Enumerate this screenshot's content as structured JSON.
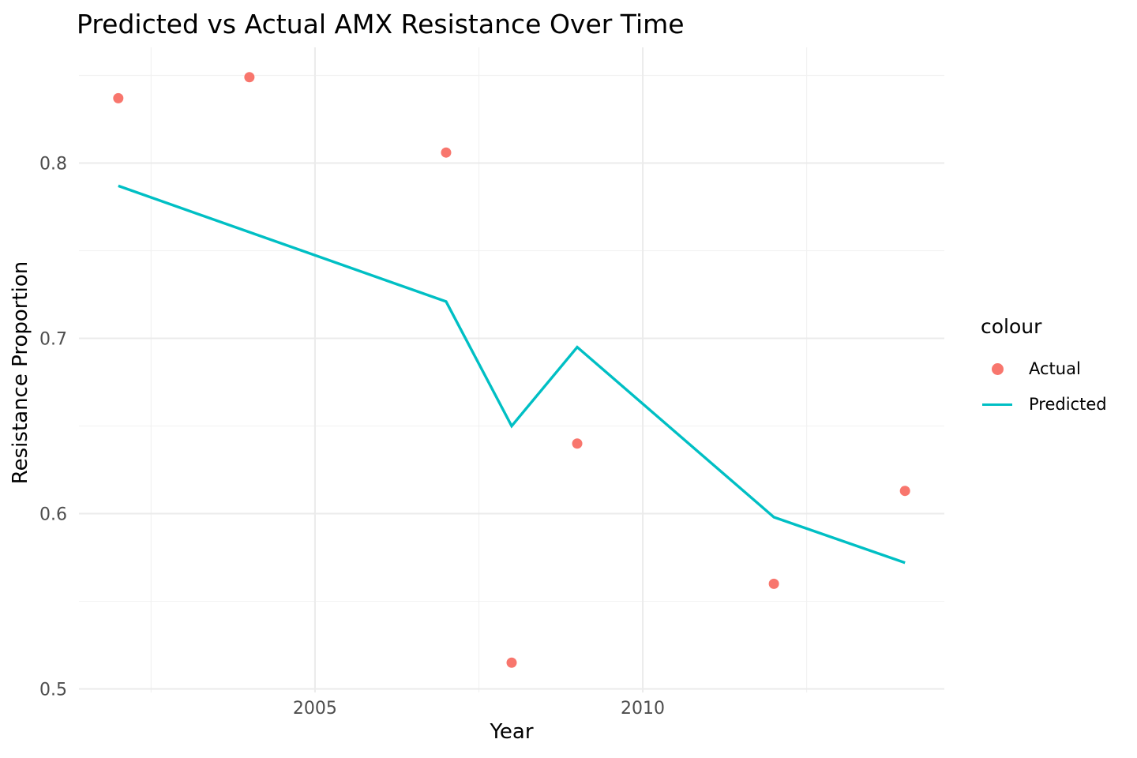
{
  "chart_data": {
    "type": "line",
    "title": "Predicted vs Actual AMX Resistance Over Time",
    "xlabel": "Year",
    "ylabel": "Resistance Proportion",
    "legend_title": "colour",
    "legend_position": "right",
    "grid": true,
    "xlim": [
      2001.4,
      2014.6
    ],
    "ylim": [
      0.498,
      0.866
    ],
    "x_ticks": [
      {
        "value": 2005,
        "label": "2005"
      },
      {
        "value": 2010,
        "label": "2010"
      }
    ],
    "y_ticks": [
      {
        "value": 0.5,
        "label": "0.5"
      },
      {
        "value": 0.6,
        "label": "0.6"
      },
      {
        "value": 0.7,
        "label": "0.7"
      },
      {
        "value": 0.8,
        "label": "0.8"
      }
    ],
    "x_minor_ticks": [
      2002.5,
      2007.5,
      2012.5
    ],
    "y_minor_ticks": [
      0.55,
      0.65,
      0.75,
      0.85
    ],
    "series": [
      {
        "name": "Actual",
        "type": "scatter",
        "color": "#F8766D",
        "x": [
          2002,
          2004,
          2007,
          2008,
          2009,
          2012,
          2014
        ],
        "y": [
          0.837,
          0.849,
          0.806,
          0.515,
          0.64,
          0.56,
          0.613
        ]
      },
      {
        "name": "Predicted",
        "type": "line",
        "color": "#00BFC4",
        "x": [
          2002,
          2007,
          2008,
          2009,
          2012,
          2014
        ],
        "y": [
          0.787,
          0.721,
          0.65,
          0.695,
          0.598,
          0.572
        ]
      }
    ],
    "style": {
      "background": "#FFFFFF",
      "grid_major_color": "#EBEBEB",
      "grid_minor_color": "#F2F2F2",
      "axis_text_color": "#4D4D4D",
      "text_color": "#000000"
    }
  }
}
